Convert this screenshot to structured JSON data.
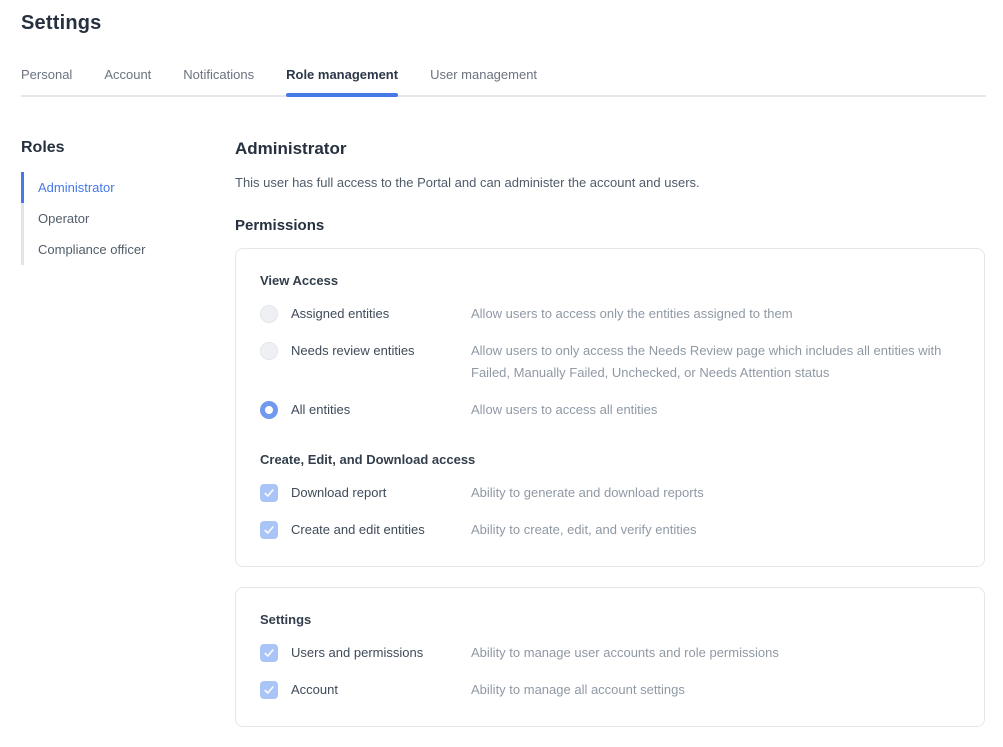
{
  "page": {
    "title": "Settings"
  },
  "tabs": [
    {
      "label": "Personal",
      "active": false
    },
    {
      "label": "Account",
      "active": false
    },
    {
      "label": "Notifications",
      "active": false
    },
    {
      "label": "Role management",
      "active": true
    },
    {
      "label": "User management",
      "active": false
    }
  ],
  "sidebar": {
    "title": "Roles",
    "items": [
      {
        "label": "Administrator",
        "active": true
      },
      {
        "label": "Operator",
        "active": false
      },
      {
        "label": "Compliance officer",
        "active": false
      }
    ]
  },
  "main": {
    "role_title": "Administrator",
    "role_description": "This user has full access to the Portal and can administer the account and users.",
    "permissions_title": "Permissions",
    "cards": [
      {
        "sections": [
          {
            "title": "View Access",
            "type": "radio",
            "options": [
              {
                "label": "Assigned entities",
                "checked": false,
                "description": "Allow users to access only the entities assigned to them"
              },
              {
                "label": "Needs review entities",
                "checked": false,
                "description": "Allow users to only access the Needs Review page which includes all entities with Failed, Manually Failed, Unchecked, or Needs Attention status"
              },
              {
                "label": "All entities",
                "checked": true,
                "description": "Allow users to access all entities"
              }
            ]
          },
          {
            "title": "Create, Edit, and Download access",
            "type": "checkbox",
            "options": [
              {
                "label": "Download report",
                "checked": true,
                "description": "Ability to generate and download reports"
              },
              {
                "label": "Create and edit entities",
                "checked": true,
                "description": "Ability to create, edit, and verify entities"
              }
            ]
          }
        ]
      },
      {
        "sections": [
          {
            "title": "Settings",
            "type": "checkbox",
            "options": [
              {
                "label": "Users and permissions",
                "checked": true,
                "description": "Ability to manage user accounts and role permissions"
              },
              {
                "label": "Account",
                "checked": true,
                "description": "Ability to manage all account settings"
              }
            ]
          }
        ]
      }
    ]
  },
  "colors": {
    "accent": "#4479e6",
    "title": "#26303f",
    "tab_inactive": "#6a7380",
    "tab_active": "#2c3849",
    "divider": "#e5e7ea",
    "card_border": "#e4e7ea",
    "label_text": "#3f4b58",
    "description_text": "#8f99a4",
    "radio_selected": "#7199ee",
    "checkbox_checked": "#a9c4f6"
  }
}
